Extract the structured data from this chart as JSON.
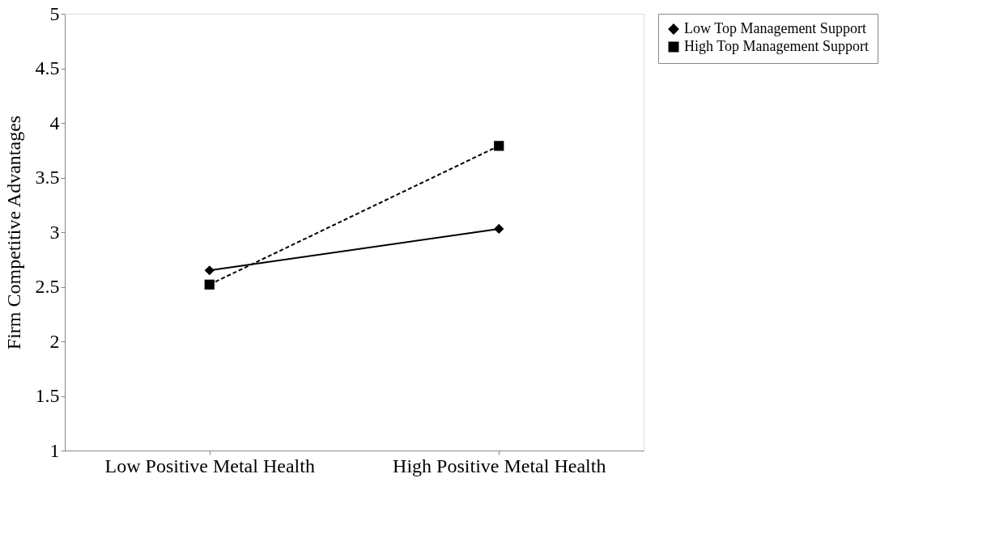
{
  "chart_data": {
    "type": "line",
    "ylabel": "Firm Competitive Advantages",
    "categories": [
      "Low Positive Metal Health",
      "High Positive Metal Health"
    ],
    "ylim": [
      1,
      5
    ],
    "yticks": [
      1,
      1.5,
      2,
      2.5,
      3,
      3.5,
      4,
      4.5,
      5
    ],
    "grid": false,
    "legend": "right",
    "series": [
      {
        "name": "Low Top Management Support",
        "color": "#000000",
        "values": [
          2.65,
          3.03
        ],
        "marker": "diamond",
        "line_style": "solid"
      },
      {
        "name": "High Top Management Support",
        "color": "#000000",
        "values": [
          2.52,
          3.79
        ],
        "marker": "square",
        "line_style": "dashed"
      }
    ]
  }
}
